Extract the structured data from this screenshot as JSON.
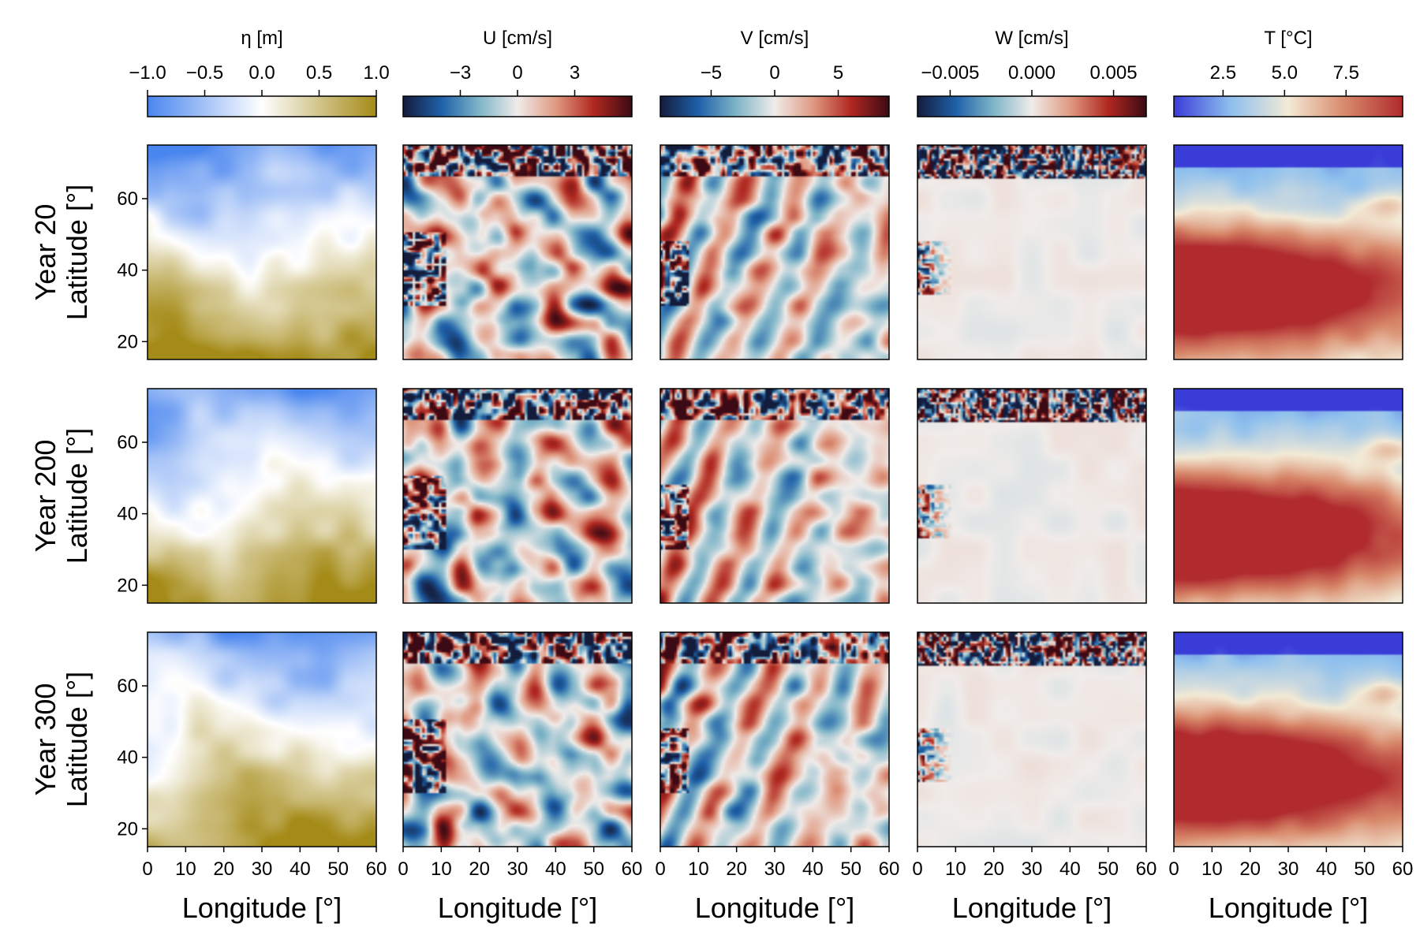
{
  "figure": {
    "row_labels": [
      "Year 20",
      "Year 200",
      "Year 300"
    ]
  },
  "chart_data": [
    {
      "type": "heatmap",
      "title": "η [m]",
      "colormap": [
        "#4a86ef",
        "#ffffff",
        "#a48a16"
      ],
      "clim": [
        -1.0,
        1.0
      ],
      "colorbar_ticks": [
        -1.0,
        -0.5,
        0.0,
        0.5,
        1.0
      ],
      "colorbar_ticklabels": [
        "−1.0",
        "−0.5",
        "0.0",
        "0.5",
        "1.0"
      ],
      "xlabel": "Longitude [°]",
      "ylabel": "Latitude [°]",
      "xlim": [
        0,
        60
      ],
      "ylim": [
        15,
        75
      ],
      "xticks": [
        0,
        10,
        20,
        30,
        40,
        50,
        60
      ],
      "yticks": [
        20,
        40,
        60
      ]
    },
    {
      "type": "heatmap",
      "title": "U [cm/s]",
      "colormap": [
        "#141c3c",
        "#1e60a8",
        "#7fb5c8",
        "#f0ecea",
        "#e09a82",
        "#b02820",
        "#3c0a14"
      ],
      "clim": [
        -6,
        6
      ],
      "colorbar_ticks": [
        -3,
        0,
        3
      ],
      "colorbar_ticklabels": [
        "−3",
        "0",
        "3"
      ],
      "xlabel": "Longitude [°]",
      "xlim": [
        0,
        60
      ],
      "ylim": [
        15,
        75
      ],
      "xticks": [
        0,
        10,
        20,
        30,
        40,
        50,
        60
      ]
    },
    {
      "type": "heatmap",
      "title": "V [cm/s]",
      "colormap": [
        "#141c3c",
        "#1e60a8",
        "#7fb5c8",
        "#f0ecea",
        "#e09a82",
        "#b02820",
        "#3c0a14"
      ],
      "clim": [
        -9,
        9
      ],
      "colorbar_ticks": [
        -5,
        0,
        5
      ],
      "colorbar_ticklabels": [
        "−5",
        "0",
        "5"
      ],
      "xlabel": "Longitude [°]",
      "xlim": [
        0,
        60
      ],
      "ylim": [
        15,
        75
      ],
      "xticks": [
        0,
        10,
        20,
        30,
        40,
        50,
        60
      ]
    },
    {
      "type": "heatmap",
      "title": "W [cm/s]",
      "colormap": [
        "#141c3c",
        "#1e60a8",
        "#7fb5c8",
        "#f0ecea",
        "#e09a82",
        "#b02820",
        "#3c0a14"
      ],
      "clim": [
        -0.007,
        0.007
      ],
      "colorbar_ticks": [
        -0.005,
        0.0,
        0.005
      ],
      "colorbar_ticklabels": [
        "−0.005",
        "0.000",
        "0.005"
      ],
      "xlabel": "Longitude [°]",
      "xlim": [
        0,
        60
      ],
      "ylim": [
        15,
        75
      ],
      "xticks": [
        0,
        10,
        20,
        30,
        40,
        50,
        60
      ]
    },
    {
      "type": "heatmap",
      "title": "T [°C]",
      "colormap": [
        "#3a3cd8",
        "#8ec0ee",
        "#f3ead6",
        "#d8886a",
        "#b02a2e"
      ],
      "clim": [
        0.5,
        9.8
      ],
      "colorbar_ticks": [
        2.5,
        5.0,
        7.5
      ],
      "colorbar_ticklabels": [
        "2.5",
        "5.0",
        "7.5"
      ],
      "xlabel": "Longitude [°]",
      "xlim": [
        0,
        60
      ],
      "ylim": [
        15,
        75
      ],
      "xticks": [
        0,
        10,
        20,
        30,
        40,
        50,
        60
      ]
    }
  ]
}
